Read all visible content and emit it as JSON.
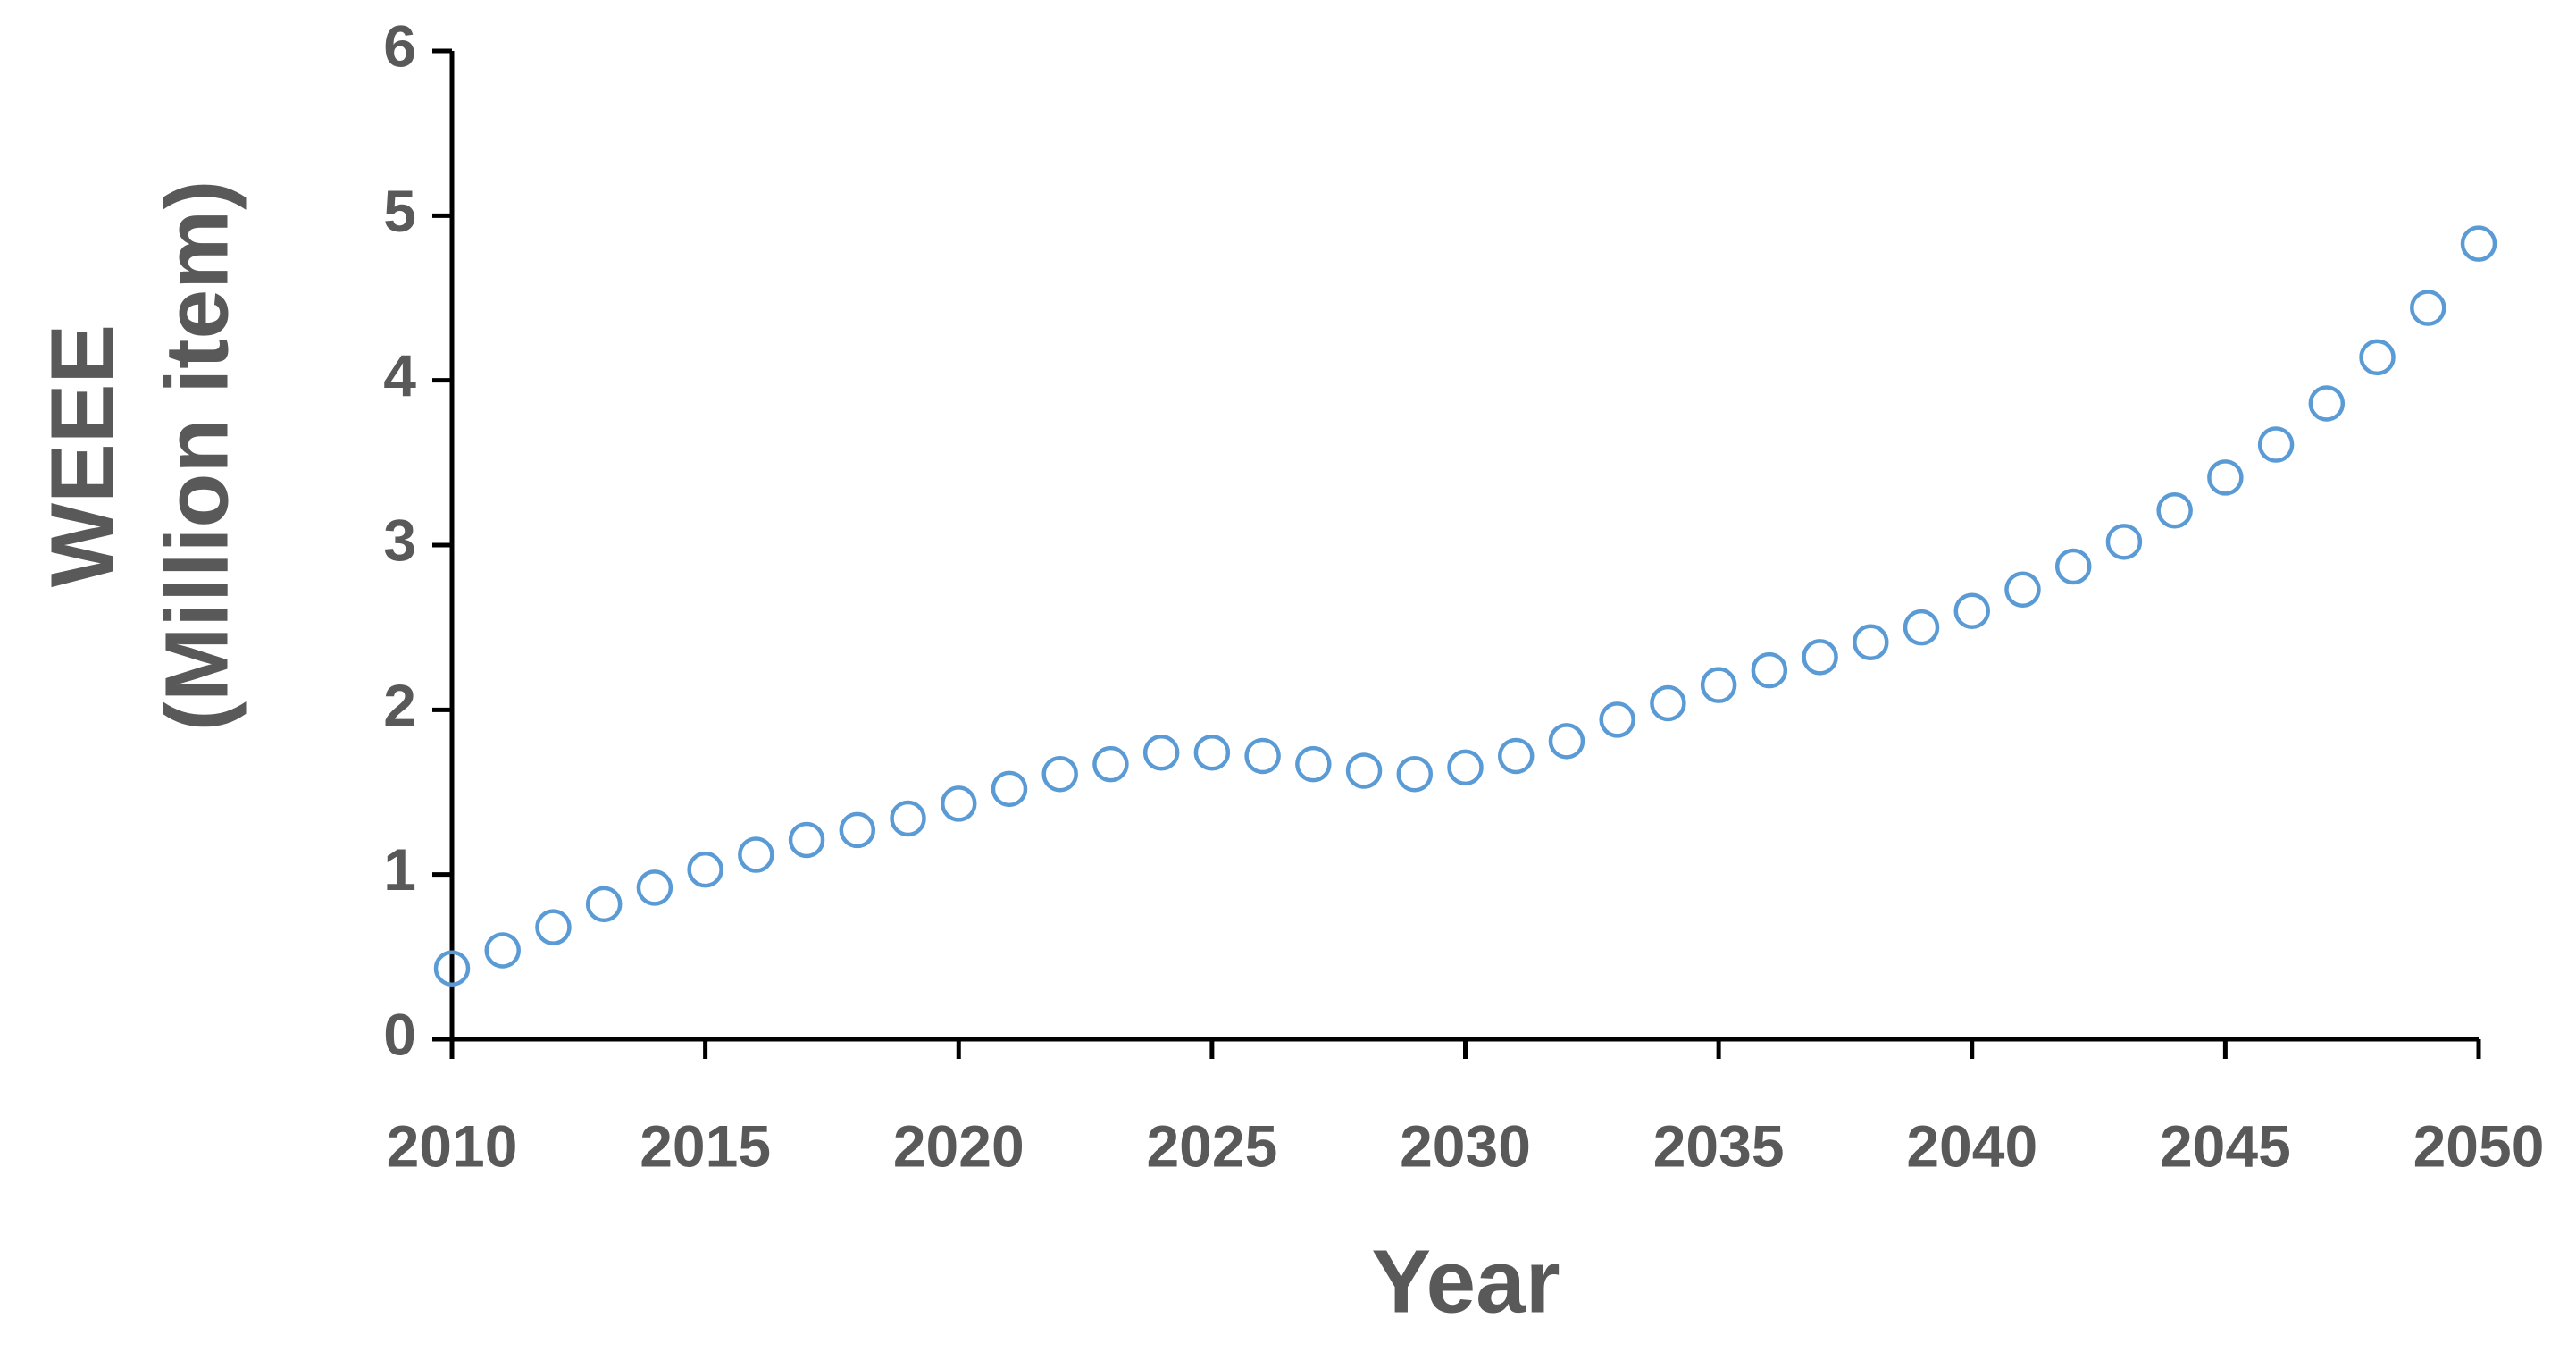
{
  "chart_data": {
    "type": "scatter",
    "xlabel": "Year",
    "ylabel": [
      "WEEE",
      "(Million item)"
    ],
    "x": [
      2010,
      2011,
      2012,
      2013,
      2014,
      2015,
      2016,
      2017,
      2018,
      2019,
      2020,
      2021,
      2022,
      2023,
      2024,
      2025,
      2026,
      2027,
      2028,
      2029,
      2030,
      2031,
      2032,
      2033,
      2034,
      2035,
      2036,
      2037,
      2038,
      2039,
      2040,
      2041,
      2042,
      2043,
      2044,
      2045,
      2046,
      2047,
      2048,
      2049,
      2050
    ],
    "values": [
      0.43,
      0.54,
      0.68,
      0.82,
      0.92,
      1.03,
      1.12,
      1.21,
      1.27,
      1.34,
      1.43,
      1.52,
      1.61,
      1.67,
      1.74,
      1.74,
      1.72,
      1.67,
      1.63,
      1.61,
      1.65,
      1.72,
      1.81,
      1.94,
      2.04,
      2.15,
      2.24,
      2.32,
      2.41,
      2.5,
      2.6,
      2.73,
      2.87,
      3.02,
      3.21,
      3.41,
      3.61,
      3.86,
      4.14,
      4.44,
      4.83
    ],
    "color": "#5b9bd5",
    "xlim": [
      2010,
      2050
    ],
    "xticks": [
      2010,
      2015,
      2020,
      2025,
      2030,
      2035,
      2040,
      2045,
      2050
    ],
    "ylim": [
      0,
      6
    ],
    "yticks": [
      0,
      1,
      2,
      3,
      4,
      5,
      6
    ]
  }
}
